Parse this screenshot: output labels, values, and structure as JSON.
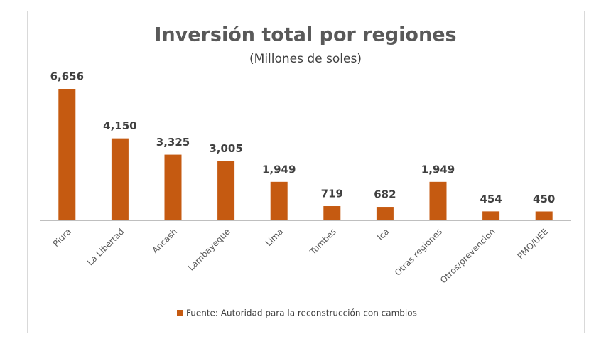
{
  "chart_data": {
    "type": "bar",
    "title": "Inversión total por regiones",
    "subtitle": "(Millones de soles)",
    "categories": [
      "Piura",
      "La Libertad",
      "Ancash",
      "Lambayeque",
      "Lima",
      "Tumbes",
      "Ica",
      "Otras regiones",
      "Otros/prevencion",
      "PMO/UEE"
    ],
    "series": [
      {
        "name": "Fuente: Autoridad para la reconstrucción con cambios",
        "color": "#c55a11",
        "values": [
          6656,
          4150,
          3325,
          3005,
          1949,
          719,
          682,
          1949,
          454,
          450
        ],
        "value_labels": [
          "6,656",
          "4,150",
          "3,325",
          "3,005",
          "1,949",
          "719",
          "682",
          "1,949",
          "454",
          "450"
        ]
      }
    ],
    "legend": "bottom"
  }
}
